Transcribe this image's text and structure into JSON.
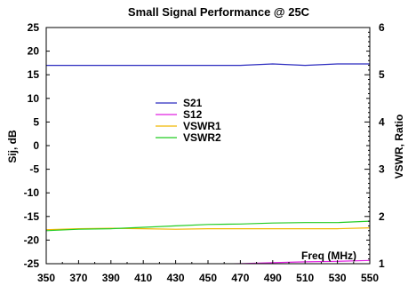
{
  "chart_data": {
    "type": "line",
    "title": "Small Signal Performance @ 25C",
    "xlabel": "Freq (MHz)",
    "ylabel_left": "Sij, dB",
    "ylabel_right": "VSWR, Ratio",
    "x": [
      350,
      370,
      390,
      410,
      430,
      450,
      470,
      490,
      510,
      530,
      550
    ],
    "x_ticks": [
      350,
      370,
      390,
      410,
      430,
      450,
      470,
      490,
      510,
      530,
      550
    ],
    "xlim": [
      350,
      550
    ],
    "ylim_left": [
      -25,
      25
    ],
    "y_ticks_left": [
      25,
      20,
      15,
      10,
      5,
      0,
      -5,
      -10,
      -15,
      -20,
      -25
    ],
    "ylim_right": [
      1,
      6
    ],
    "y_ticks_right": [
      6,
      5,
      4,
      3,
      2,
      1
    ],
    "grid": false,
    "legend_position": "center",
    "series": [
      {
        "name": "S21",
        "axis": "left",
        "color": "#2b2bbf",
        "values": [
          17.0,
          17.0,
          17.0,
          17.0,
          17.0,
          17.0,
          17.0,
          17.3,
          17.0,
          17.3,
          17.3
        ]
      },
      {
        "name": "S12",
        "axis": "left",
        "color": "#e020e0",
        "values": [
          -25.8,
          -25.7,
          -25.5,
          -25.3,
          -25.2,
          -25.1,
          -25.0,
          -24.8,
          -24.6,
          -24.5,
          -24.3
        ]
      },
      {
        "name": "VSWR1",
        "axis": "right",
        "color": "#f0b800",
        "values": [
          1.72,
          1.74,
          1.75,
          1.74,
          1.73,
          1.74,
          1.74,
          1.74,
          1.74,
          1.74,
          1.76
        ]
      },
      {
        "name": "VSWR2",
        "axis": "right",
        "color": "#22cc22",
        "values": [
          1.7,
          1.73,
          1.74,
          1.77,
          1.8,
          1.83,
          1.84,
          1.86,
          1.87,
          1.87,
          1.9
        ]
      }
    ]
  }
}
